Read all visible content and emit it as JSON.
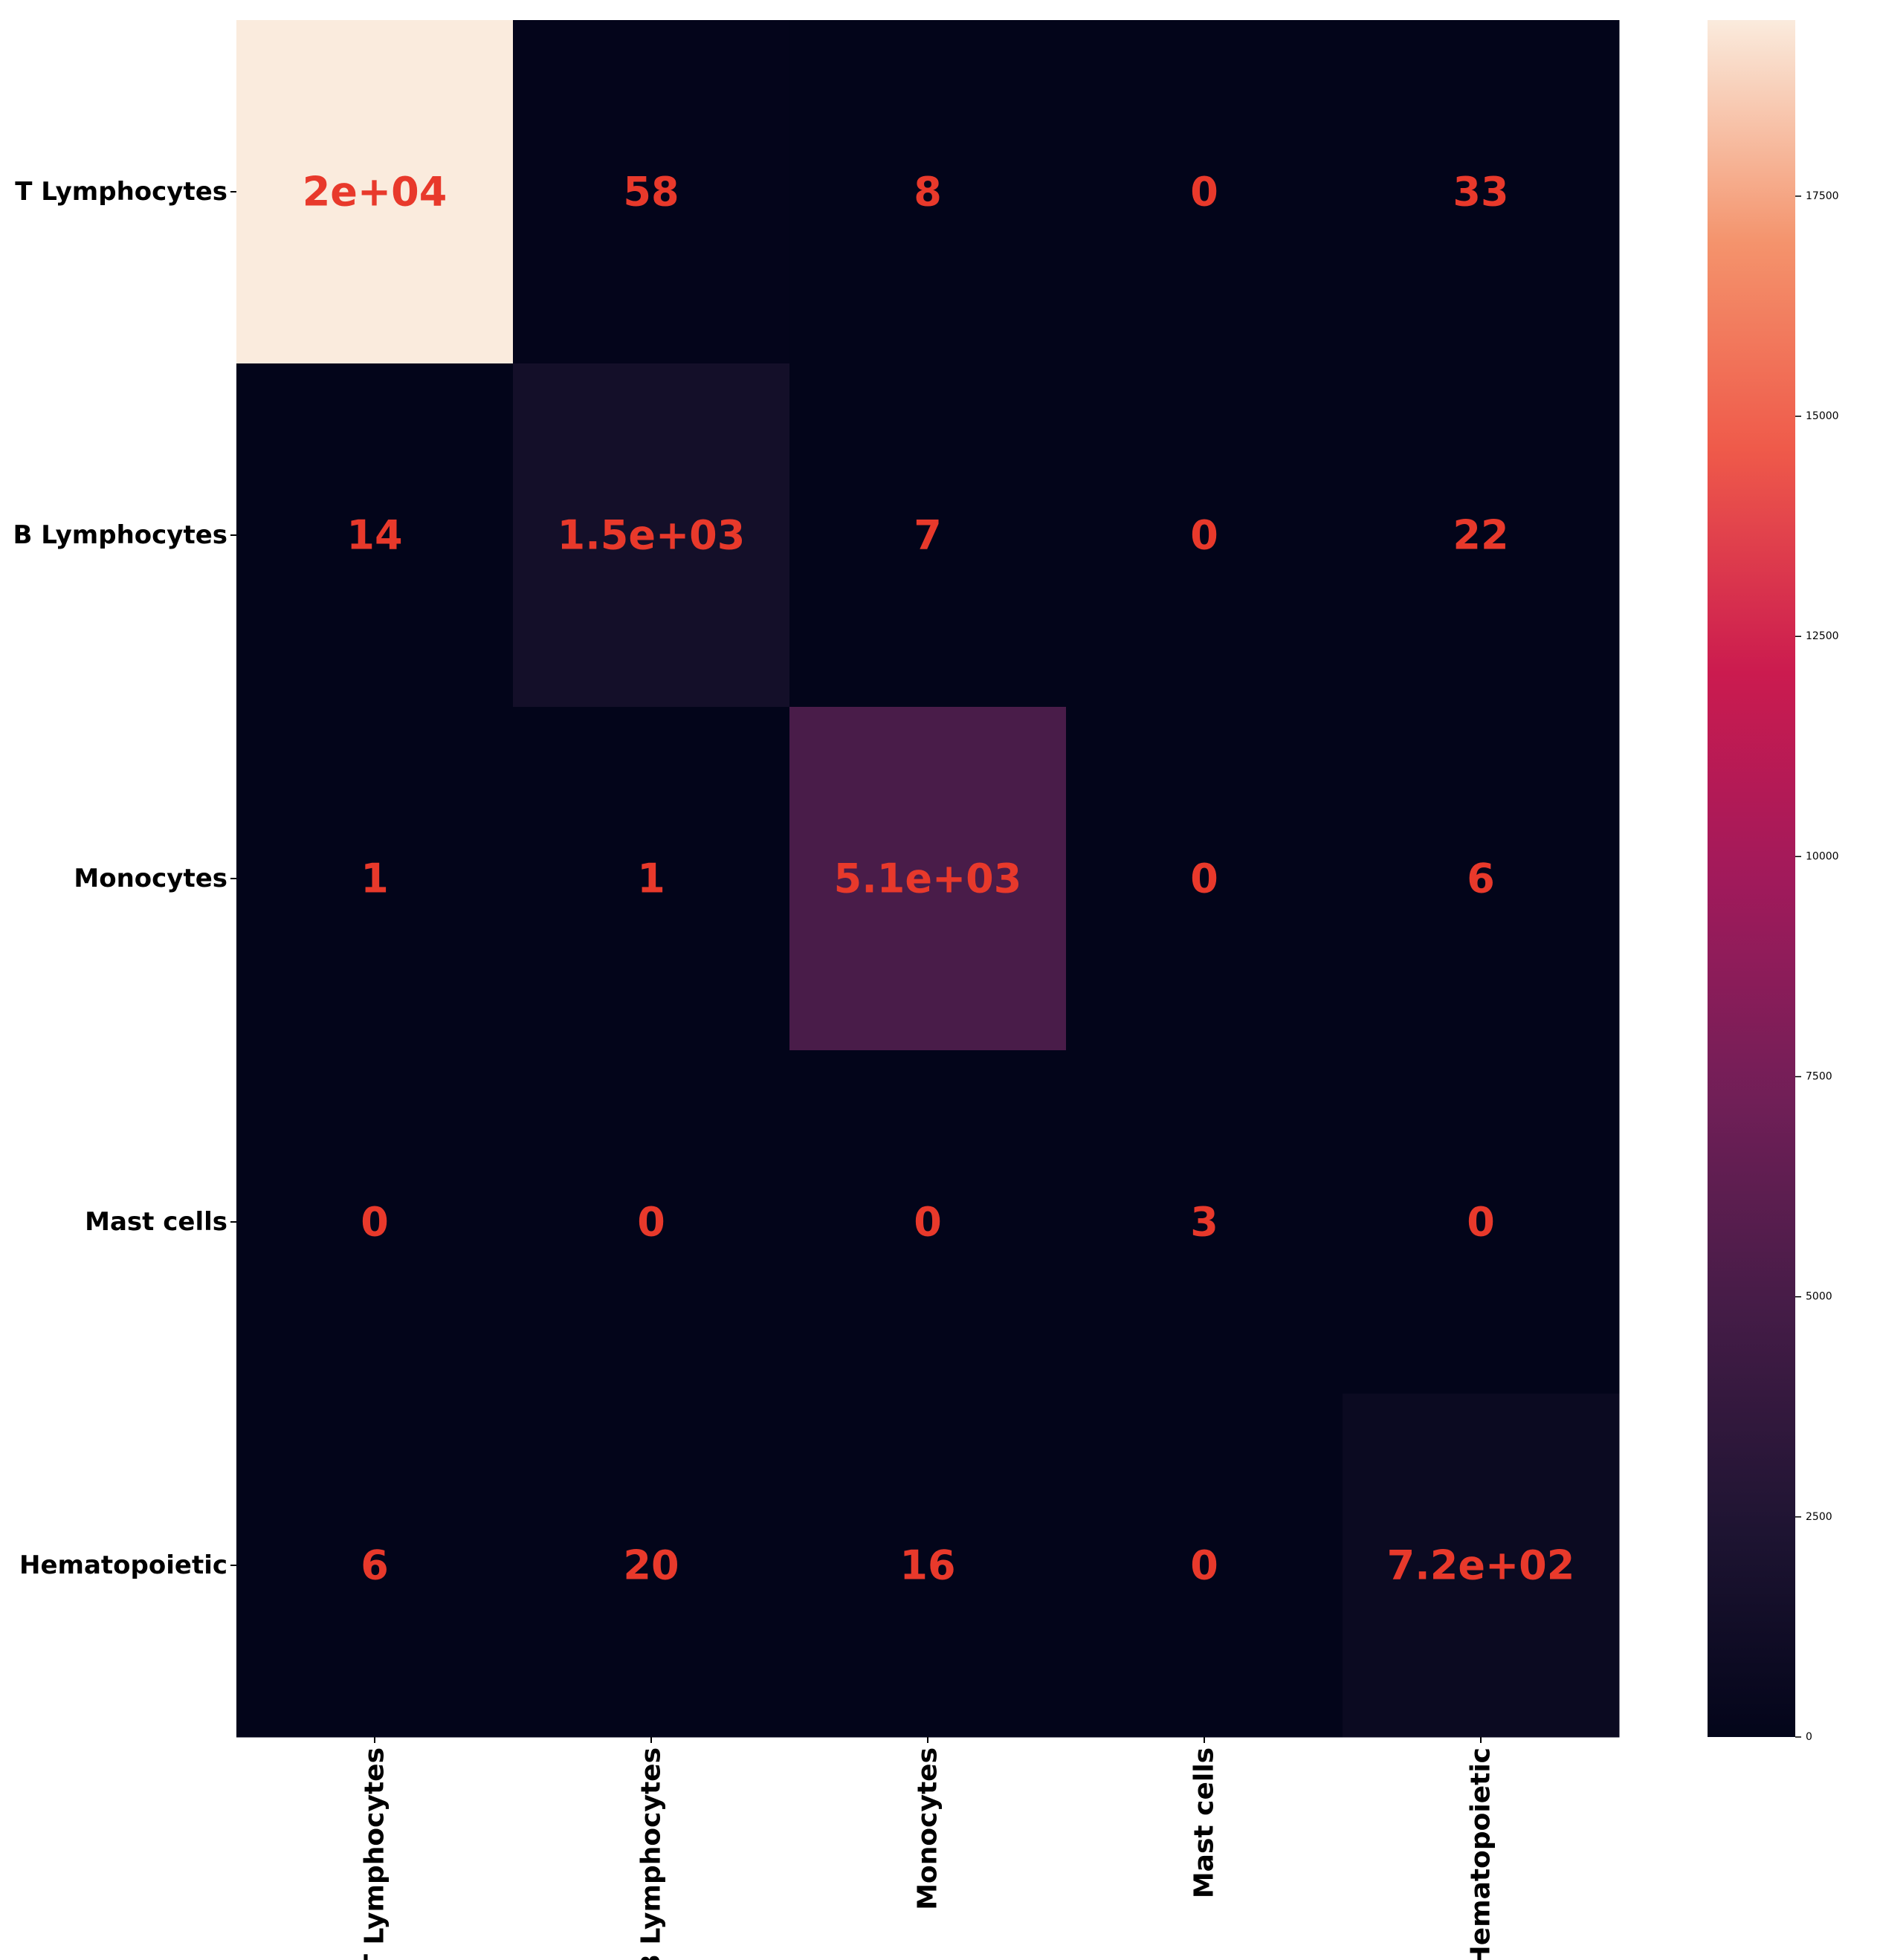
{
  "chart_data": {
    "type": "heatmap",
    "title": "",
    "xlabel": "",
    "ylabel": "",
    "row_labels": [
      "T Lymphocytes",
      "B Lymphocytes",
      "Monocytes",
      "Mast cells",
      "Hematopoietic"
    ],
    "col_labels": [
      "T Lymphocytes",
      "B Lymphocytes",
      "Monocytes",
      "Mast cells",
      "Hematopoietic"
    ],
    "values": [
      [
        19500,
        58,
        8,
        0,
        33
      ],
      [
        14,
        1500,
        7,
        0,
        22
      ],
      [
        1,
        1,
        5100,
        0,
        6
      ],
      [
        0,
        0,
        0,
        3,
        0
      ],
      [
        6,
        20,
        16,
        0,
        720
      ]
    ],
    "annotations": [
      [
        "2e+04",
        "58",
        "8",
        "0",
        "33"
      ],
      [
        "14",
        "1.5e+03",
        "7",
        "0",
        "22"
      ],
      [
        "1",
        "1",
        "5.1e+03",
        "0",
        "6"
      ],
      [
        "0",
        "0",
        "0",
        "3",
        "0"
      ],
      [
        "6",
        "20",
        "16",
        "0",
        "7.2e+02"
      ]
    ],
    "annotation_color": "#e8392b",
    "colorbar": {
      "min": 0,
      "max": 19500,
      "ticks": [
        0,
        2500,
        5000,
        7500,
        10000,
        12500,
        15000,
        17500
      ],
      "tick_labels": [
        "0",
        "2500",
        "5000",
        "7500",
        "10000",
        "12500",
        "15000",
        "17500"
      ],
      "colormap": "rocket"
    }
  }
}
